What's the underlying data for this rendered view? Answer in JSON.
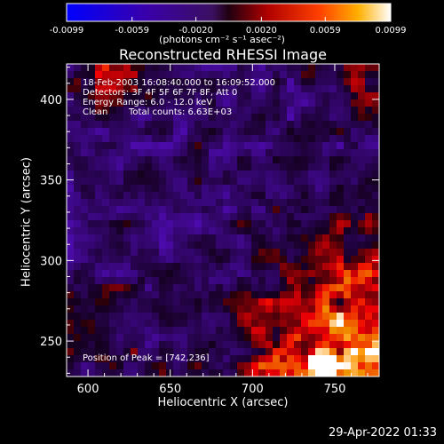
{
  "colorbar": {
    "ticks": [
      "-0.0099",
      "-0.0059",
      "-0.0020",
      "0.0020",
      "0.0059",
      "0.0099"
    ],
    "range": [
      -0.0099,
      0.0099
    ],
    "units": "(photons cm⁻² s⁻¹ asec⁻²)"
  },
  "chart_data": {
    "type": "heatmap",
    "title": "Reconstructed RHESSI Image",
    "xlabel": "Heliocentric X (arcsec)",
    "ylabel": "Heliocentric Y (arcsec)",
    "xlim": [
      587,
      777
    ],
    "ylim": [
      228,
      422
    ],
    "xticks": [
      600,
      650,
      700,
      750
    ],
    "yticks": [
      250,
      300,
      350,
      400
    ],
    "peak": [
      742,
      236
    ],
    "annotations": {
      "time": "18-Feb-2003 16:08:40.000 to 16:09:52.000",
      "detectors": "Detectors: 3F 4F 5F 6F 7F 8F, Att 0",
      "energy": "Energy Range: 6.0 - 12.0 keV",
      "method": "Clean",
      "counts": "Total counts: 6.63E+03",
      "peak_label": "Position of Peak = [742,236]"
    }
  },
  "footer": {
    "date": "29-Apr-2022 01:33"
  }
}
